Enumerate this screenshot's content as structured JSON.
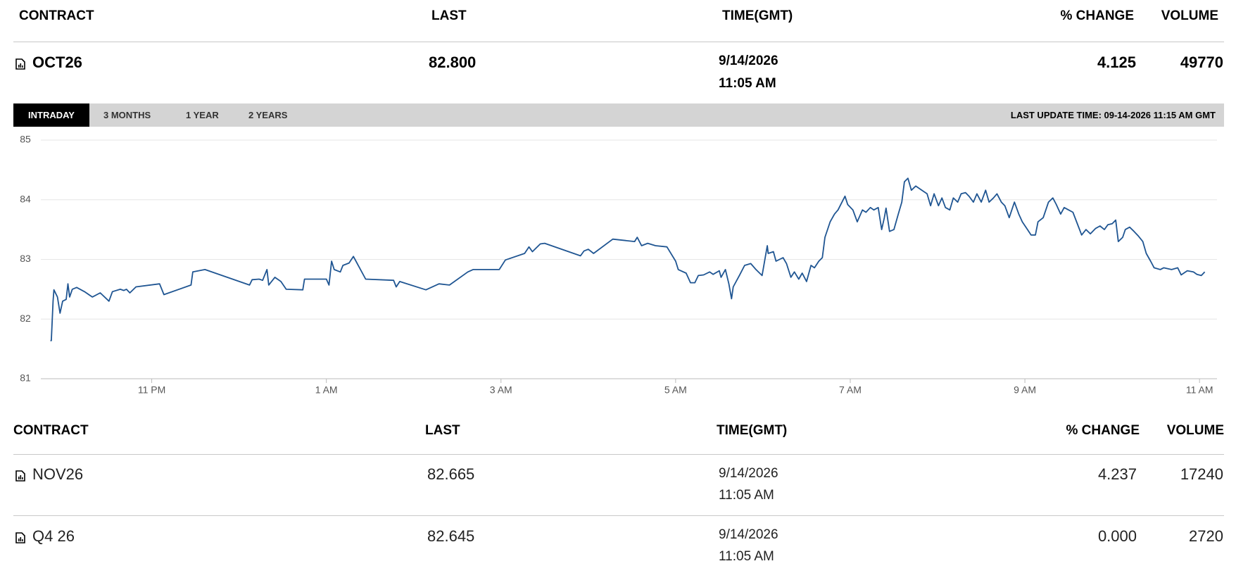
{
  "main_table": {
    "headers": [
      "CONTRACT",
      "LAST",
      "TIME(GMT)",
      "% CHANGE",
      "VOLUME"
    ],
    "row": [
      "OCT26",
      "82.800",
      "9/14/2026",
      "11:05 AM",
      "4.125",
      "49770"
    ]
  },
  "tabs": [
    "INTRADAY",
    "3 MONTHS",
    "1 YEAR",
    "2 YEARS"
  ],
  "last_update": "LAST UPDATE TIME: 09-14-2026 11:15 AM GMT",
  "chart_data": {
    "type": "line",
    "color": "#1f5592",
    "grid": true,
    "xlim": [
      21.73,
      35.2
    ],
    "ylim": [
      81,
      85
    ],
    "yticks": [
      81,
      82,
      83,
      84,
      85
    ],
    "xticks": [
      {
        "value": 23,
        "label": "11 PM"
      },
      {
        "value": 25,
        "label": "1 AM"
      },
      {
        "value": 27,
        "label": "3 AM"
      },
      {
        "value": 29,
        "label": "5 AM"
      },
      {
        "value": 31,
        "label": "7 AM"
      },
      {
        "value": 33,
        "label": "9 AM"
      },
      {
        "value": 35,
        "label": "11 AM"
      }
    ],
    "x": [
      21.84,
      21.85,
      21.87,
      21.88,
      21.92,
      21.95,
      21.98,
      22.02,
      22.04,
      22.06,
      22.09,
      22.14,
      22.18,
      22.23,
      22.32,
      22.41,
      22.51,
      22.55,
      22.64,
      22.68,
      22.71,
      22.75,
      22.82,
      23.09,
      23.14,
      23.45,
      23.47,
      23.61,
      24.12,
      24.15,
      24.23,
      24.27,
      24.32,
      24.34,
      24.41,
      24.48,
      24.54,
      24.73,
      24.75,
      25.0,
      25.03,
      25.06,
      25.09,
      25.16,
      25.19,
      25.26,
      25.31,
      25.45,
      25.77,
      25.8,
      25.84,
      26.14,
      26.29,
      26.41,
      26.62,
      26.68,
      26.98,
      27.05,
      27.27,
      27.32,
      27.36,
      27.45,
      27.5,
      27.91,
      27.95,
      28.0,
      28.06,
      28.28,
      28.53,
      28.56,
      28.61,
      28.68,
      28.77,
      28.9,
      29.0,
      29.03,
      29.12,
      29.17,
      29.22,
      29.26,
      29.32,
      29.39,
      29.43,
      29.5,
      29.52,
      29.57,
      29.61,
      29.64,
      29.66,
      29.73,
      29.79,
      29.86,
      29.92,
      29.99,
      30.05,
      30.06,
      30.12,
      30.15,
      30.23,
      30.27,
      30.32,
      30.36,
      30.41,
      30.45,
      30.5,
      30.55,
      30.59,
      30.64,
      30.68,
      30.71,
      30.74,
      30.77,
      30.82,
      30.86,
      30.94,
      30.97,
      31.03,
      31.08,
      31.14,
      31.18,
      31.23,
      31.27,
      31.32,
      31.36,
      31.39,
      31.41,
      31.45,
      31.5,
      31.55,
      31.59,
      31.62,
      31.66,
      31.7,
      31.75,
      31.82,
      31.88,
      31.92,
      31.96,
      32.01,
      32.05,
      32.09,
      32.14,
      32.18,
      32.23,
      32.27,
      32.32,
      32.36,
      32.41,
      32.45,
      32.5,
      32.55,
      32.59,
      32.64,
      32.68,
      32.73,
      32.77,
      32.82,
      32.88,
      32.93,
      32.97,
      33.03,
      33.07,
      33.12,
      33.15,
      33.21,
      33.27,
      33.32,
      33.36,
      33.41,
      33.45,
      33.5,
      33.55,
      33.61,
      33.65,
      33.7,
      33.75,
      33.81,
      33.86,
      33.91,
      33.95,
      34.0,
      34.04,
      34.07,
      34.12,
      34.15,
      34.2,
      34.25,
      34.3,
      34.35,
      34.39,
      34.44,
      34.48,
      34.55,
      34.59,
      34.68,
      34.75,
      34.79,
      34.86,
      34.93,
      34.97,
      35.02,
      35.06
    ],
    "values": [
      81.64,
      81.64,
      82.3,
      82.49,
      82.37,
      82.1,
      82.3,
      82.33,
      82.59,
      82.37,
      82.5,
      82.53,
      82.5,
      82.46,
      82.37,
      82.44,
      82.3,
      82.46,
      82.5,
      82.48,
      82.5,
      82.44,
      82.54,
      82.59,
      82.41,
      82.57,
      82.79,
      82.83,
      82.57,
      82.66,
      82.67,
      82.65,
      82.83,
      82.57,
      82.7,
      82.63,
      82.5,
      82.49,
      82.67,
      82.67,
      82.57,
      82.97,
      82.83,
      82.79,
      82.9,
      82.94,
      83.05,
      82.67,
      82.65,
      82.54,
      82.63,
      82.49,
      82.59,
      82.57,
      82.79,
      82.83,
      82.83,
      82.99,
      83.1,
      83.21,
      83.13,
      83.26,
      83.27,
      83.06,
      83.14,
      83.17,
      83.1,
      83.34,
      83.3,
      83.37,
      83.23,
      83.27,
      83.23,
      83.21,
      82.97,
      82.83,
      82.77,
      82.61,
      82.61,
      82.73,
      82.74,
      82.79,
      82.75,
      82.81,
      82.7,
      82.83,
      82.59,
      82.34,
      82.54,
      82.73,
      82.9,
      82.93,
      82.83,
      82.73,
      83.23,
      83.1,
      83.13,
      82.97,
      83.03,
      82.93,
      82.7,
      82.79,
      82.67,
      82.77,
      82.63,
      82.9,
      82.86,
      82.97,
      83.03,
      83.37,
      83.5,
      83.63,
      83.76,
      83.83,
      84.06,
      83.92,
      83.83,
      83.63,
      83.83,
      83.79,
      83.87,
      83.83,
      83.87,
      83.5,
      83.7,
      83.86,
      83.47,
      83.5,
      83.76,
      83.96,
      84.3,
      84.36,
      84.16,
      84.23,
      84.16,
      84.1,
      83.9,
      84.1,
      83.9,
      84.03,
      83.87,
      83.83,
      84.03,
      83.96,
      84.1,
      84.12,
      84.06,
      83.96,
      84.1,
      83.96,
      84.16,
      83.96,
      84.03,
      84.1,
      83.96,
      83.9,
      83.7,
      83.96,
      83.76,
      83.63,
      83.5,
      83.41,
      83.41,
      83.63,
      83.7,
      83.96,
      84.03,
      83.92,
      83.76,
      83.87,
      83.83,
      83.79,
      83.56,
      83.41,
      83.5,
      83.43,
      83.52,
      83.56,
      83.5,
      83.58,
      83.6,
      83.66,
      83.3,
      83.37,
      83.5,
      83.54,
      83.47,
      83.39,
      83.3,
      83.1,
      82.97,
      82.86,
      82.83,
      82.86,
      82.83,
      82.86,
      82.74,
      82.81,
      82.79,
      82.75,
      82.73,
      82.79
    ]
  },
  "table": {
    "headers": [
      "CONTRACT",
      "LAST",
      "TIME(GMT)",
      "% CHANGE",
      "VOLUME"
    ],
    "rows": [
      [
        "NOV26",
        "82.665",
        "9/14/2026",
        "11:05 AM",
        "4.237",
        "17240"
      ],
      [
        "Q4 26",
        "82.645",
        "9/14/2026",
        "11:05 AM",
        "0.000",
        "2720"
      ]
    ]
  }
}
